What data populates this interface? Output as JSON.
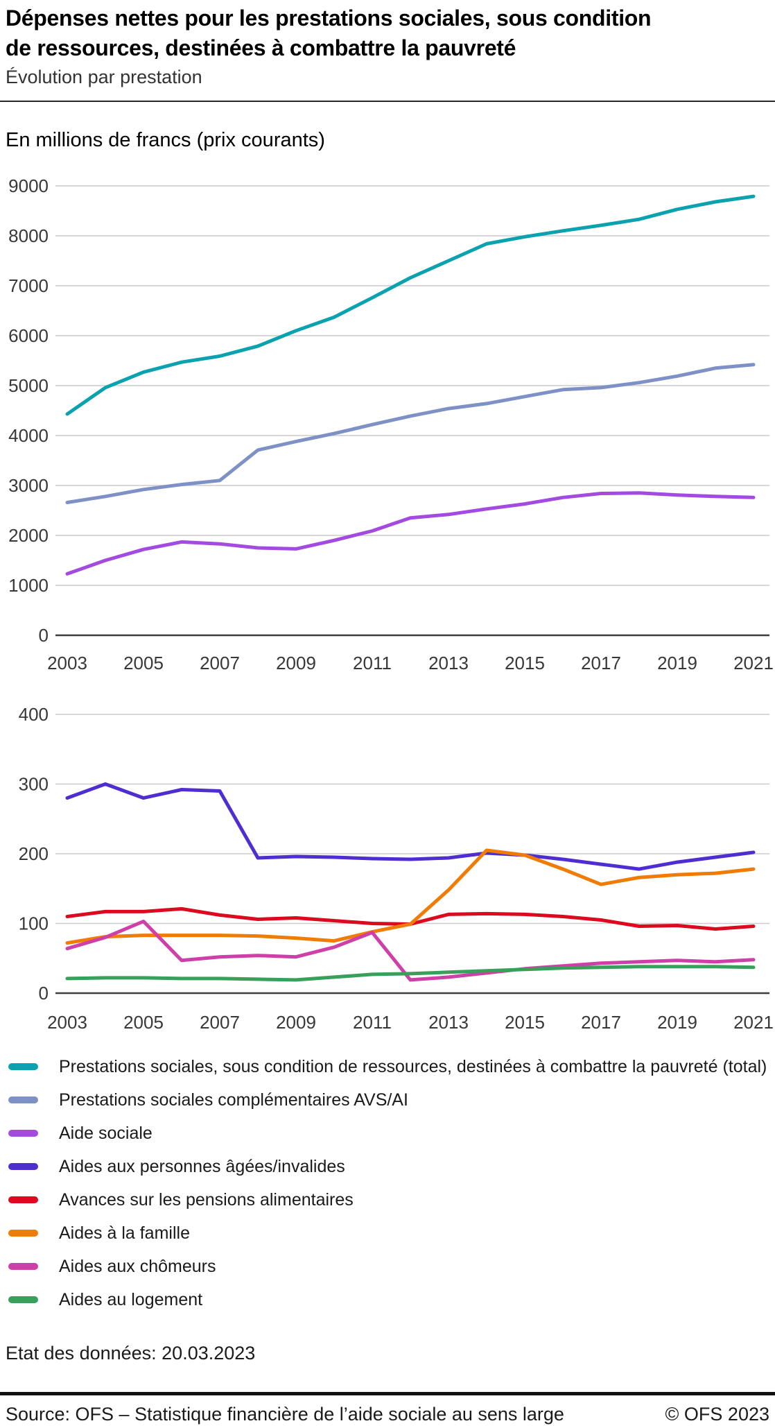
{
  "header": {
    "title_line1": "Dépenses nettes pour les prestations sociales, sous condition",
    "title_line2": "de ressources, destinées à combattre la pauvreté",
    "subtitle": "Évolution par prestation",
    "units_label": "En millions de francs (prix courants)"
  },
  "chart_data": [
    {
      "type": "line",
      "title": "Dépenses nettes - séries principales",
      "xlabel": "",
      "ylabel": "En millions de francs (prix courants)",
      "grid": true,
      "x": [
        2003,
        2004,
        2005,
        2006,
        2007,
        2008,
        2009,
        2010,
        2011,
        2012,
        2013,
        2014,
        2015,
        2016,
        2017,
        2018,
        2019,
        2020,
        2021
      ],
      "xticks": [
        2003,
        2005,
        2007,
        2009,
        2011,
        2013,
        2015,
        2017,
        2019,
        2021
      ],
      "ylim": [
        0,
        9000
      ],
      "yticks": [
        0,
        1000,
        2000,
        3000,
        4000,
        5000,
        6000,
        7000,
        8000,
        9000
      ],
      "series": [
        {
          "name": "Prestations sociales, sous condition de ressources, destinées à combattre la pauvreté (total)",
          "color": "#0aa2ae",
          "values": [
            4430,
            4960,
            5270,
            5470,
            5590,
            5790,
            6100,
            6370,
            6760,
            7160,
            7500,
            7840,
            7980,
            8100,
            8210,
            8330,
            8530,
            8680,
            8790
          ]
        },
        {
          "name": "Prestations sociales complémentaires AVS/AI",
          "color": "#7d91c6",
          "values": [
            2660,
            2780,
            2920,
            3020,
            3100,
            3710,
            3880,
            4040,
            4220,
            4390,
            4540,
            4640,
            4780,
            4920,
            4960,
            5060,
            5190,
            5350,
            5420
          ]
        },
        {
          "name": "Aide sociale",
          "color": "#a34be0",
          "values": [
            1230,
            1500,
            1720,
            1870,
            1830,
            1750,
            1730,
            1900,
            2090,
            2350,
            2420,
            2530,
            2630,
            2760,
            2840,
            2850,
            2810,
            2780,
            2760
          ]
        }
      ]
    },
    {
      "type": "line",
      "title": "Dépenses nettes - petites prestations",
      "xlabel": "",
      "ylabel": "En millions de francs (prix courants)",
      "grid": true,
      "x": [
        2003,
        2004,
        2005,
        2006,
        2007,
        2008,
        2009,
        2010,
        2011,
        2012,
        2013,
        2014,
        2015,
        2016,
        2017,
        2018,
        2019,
        2020,
        2021
      ],
      "xticks": [
        2003,
        2005,
        2007,
        2009,
        2011,
        2013,
        2015,
        2017,
        2019,
        2021
      ],
      "ylim": [
        0,
        400
      ],
      "yticks": [
        0,
        100,
        200,
        300,
        400
      ],
      "series": [
        {
          "name": "Aides aux personnes âgées/invalides",
          "color": "#4f2ed1",
          "values": [
            280,
            300,
            280,
            292,
            290,
            194,
            196,
            195,
            193,
            192,
            194,
            201,
            198,
            192,
            185,
            178,
            188,
            195,
            202
          ]
        },
        {
          "name": "Avances sur les pensions alimentaires",
          "color": "#dc0a1e",
          "values": [
            110,
            117,
            117,
            121,
            112,
            106,
            108,
            104,
            100,
            99,
            113,
            114,
            113,
            110,
            105,
            96,
            97,
            92,
            96
          ]
        },
        {
          "name": "Aides à la famille",
          "color": "#f07c05",
          "values": [
            72,
            81,
            83,
            83,
            83,
            82,
            79,
            75,
            88,
            99,
            148,
            205,
            198,
            178,
            156,
            166,
            170,
            172,
            178
          ]
        },
        {
          "name": "Aides aux chômeurs",
          "color": "#ce3fa8",
          "values": [
            64,
            80,
            103,
            47,
            52,
            54,
            52,
            66,
            87,
            19,
            23,
            29,
            35,
            39,
            43,
            45,
            47,
            45,
            48
          ]
        },
        {
          "name": "Aides au logement",
          "color": "#38a05a",
          "values": [
            21,
            22,
            22,
            21,
            21,
            20,
            19,
            23,
            27,
            28,
            30,
            32,
            34,
            36,
            37,
            38,
            38,
            38,
            37
          ]
        }
      ]
    }
  ],
  "legend": {
    "items": [
      {
        "label": "Prestations sociales, sous condition de ressources, destinées à combattre la pauvreté (total)",
        "color": "#0aa2ae"
      },
      {
        "label": "Prestations sociales complémentaires AVS/AI",
        "color": "#7d91c6"
      },
      {
        "label": "Aide sociale",
        "color": "#a34be0"
      },
      {
        "label": "Aides aux personnes âgées/invalides",
        "color": "#4f2ed1"
      },
      {
        "label": "Avances sur les pensions alimentaires",
        "color": "#dc0a1e"
      },
      {
        "label": "Aides à la famille",
        "color": "#f07c05"
      },
      {
        "label": "Aides aux chômeurs",
        "color": "#ce3fa8"
      },
      {
        "label": "Aides au logement",
        "color": "#38a05a"
      }
    ]
  },
  "footnote": {
    "data_state": "Etat des données: 20.03.2023"
  },
  "footer": {
    "source": "Source: OFS – Statistique financière de l’aide sociale au sens large",
    "copyright": "© OFS 2023"
  }
}
